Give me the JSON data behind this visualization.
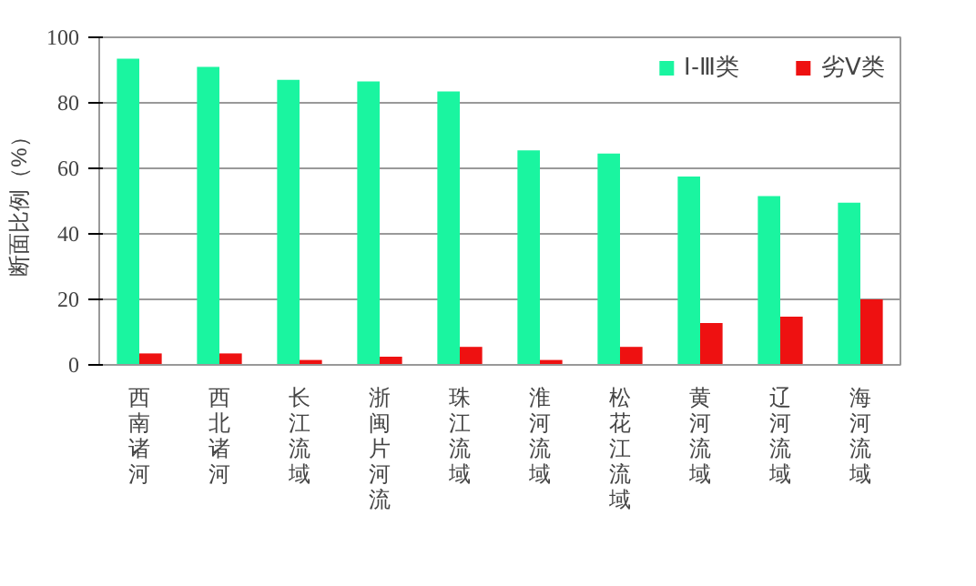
{
  "chart_data": {
    "type": "bar",
    "ylabel": "断面比例（%）",
    "categories": [
      "西南诸河",
      "西北诸河",
      "长江流域",
      "浙闽片河流",
      "珠江流域",
      "淮河流域",
      "松花江流域",
      "黄河流域",
      "辽河流域",
      "海河流域"
    ],
    "series": [
      {
        "name": "Ⅰ-Ⅲ类",
        "color": "#1af5a0",
        "values": [
          93.5,
          91,
          87,
          86.5,
          83.5,
          65.5,
          64.5,
          57.5,
          51.5,
          49.5
        ]
      },
      {
        "name": "劣Ⅴ类",
        "color": "#ee1111",
        "values": [
          3.5,
          3.5,
          1.5,
          2.5,
          5.5,
          1.5,
          5.5,
          12.8,
          14.7,
          20
        ]
      }
    ],
    "ylim": [
      0,
      100
    ],
    "yticks": [
      0,
      20,
      40,
      60,
      80,
      100
    ],
    "grid": "y",
    "legend": "top right"
  }
}
